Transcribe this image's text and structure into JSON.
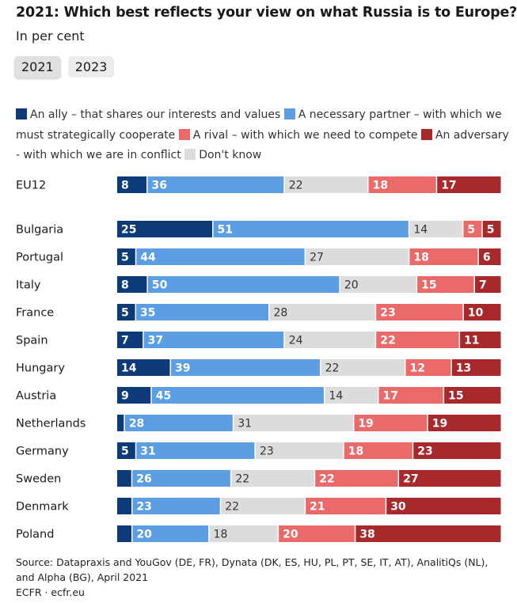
{
  "header": {
    "title": "2021: Which best reflects your view on what Russia is to Europe?",
    "subtitle": "In per cent"
  },
  "tabs": [
    {
      "label": "2021",
      "active": true
    },
    {
      "label": "2023",
      "active": false
    }
  ],
  "colors": {
    "ally": "#0d3b7a",
    "partner": "#5c9ee4",
    "dontknow": "#dcdcdc",
    "rival": "#ea6a6a",
    "adversary": "#a8292c",
    "light_text": "#ffffff",
    "dark_text": "#333333"
  },
  "legend": [
    {
      "label": "An ally – that shares our interests and values",
      "color": "#0d3b7a"
    },
    {
      "label": "A necessary partner – with which we must strategically cooperate",
      "color": "#5c9ee4"
    },
    {
      "label": "A rival – with which we need to compete",
      "color": "#ea6a6a"
    },
    {
      "label": "An adversary - with which we are in conflict",
      "color": "#a8292c"
    },
    {
      "label": "Don't know",
      "color": "#dcdcdc"
    }
  ],
  "chart_data": {
    "type": "bar",
    "orientation": "horizontal",
    "stacked": true,
    "title": "2021: Which best reflects your view on what Russia is to Europe?",
    "subtitle": "In per cent",
    "xlim": [
      0,
      100
    ],
    "categories": [
      "EU12",
      "Bulgaria",
      "Portugal",
      "Italy",
      "France",
      "Spain",
      "Hungary",
      "Austria",
      "Netherlands",
      "Germany",
      "Sweden",
      "Denmark",
      "Poland"
    ],
    "series": [
      {
        "name": "An ally – that shares our interests and values",
        "key": "ally",
        "values": [
          8,
          25,
          5,
          8,
          5,
          7,
          14,
          9,
          2,
          5,
          4,
          4,
          4
        ],
        "labels": [
          "8",
          "25",
          "5",
          "8",
          "5",
          "7",
          "14",
          "9",
          "",
          "5",
          "",
          "",
          ""
        ]
      },
      {
        "name": "A necessary partner – with which we must strategically cooperate",
        "key": "partner",
        "values": [
          36,
          51,
          44,
          50,
          35,
          37,
          39,
          45,
          28,
          31,
          26,
          23,
          20
        ],
        "labels": [
          "36",
          "51",
          "44",
          "50",
          "35",
          "37",
          "39",
          "45",
          "28",
          "31",
          "26",
          "23",
          "20"
        ]
      },
      {
        "name": "Don't know",
        "key": "dontknow",
        "values": [
          22,
          14,
          27,
          20,
          28,
          24,
          22,
          14,
          31,
          23,
          22,
          22,
          18
        ],
        "labels": [
          "22",
          "14",
          "27",
          "20",
          "28",
          "24",
          "22",
          "14",
          "31",
          "23",
          "22",
          "22",
          "18"
        ]
      },
      {
        "name": "A rival – with which we need to compete",
        "key": "rival",
        "values": [
          18,
          5,
          18,
          15,
          23,
          22,
          12,
          17,
          19,
          18,
          22,
          21,
          20
        ],
        "labels": [
          "18",
          "5",
          "18",
          "15",
          "23",
          "22",
          "12",
          "17",
          "19",
          "18",
          "22",
          "21",
          "20"
        ]
      },
      {
        "name": "An adversary - with which we are in conflict",
        "key": "adversary",
        "values": [
          17,
          5,
          6,
          7,
          10,
          11,
          13,
          15,
          19,
          23,
          27,
          30,
          38
        ],
        "labels": [
          "17",
          "5",
          "6",
          "7",
          "10",
          "11",
          "13",
          "15",
          "19",
          "23",
          "27",
          "30",
          "38"
        ]
      }
    ]
  },
  "source": {
    "line1": "Source: Datapraxis and YouGov (DE, FR), Dynata (DK, ES, HU, PL, PT, SE, IT, AT), AnalitiQs (NL), and Alpha (BG), April 2021",
    "line2": "ECFR · ecfr.eu"
  }
}
